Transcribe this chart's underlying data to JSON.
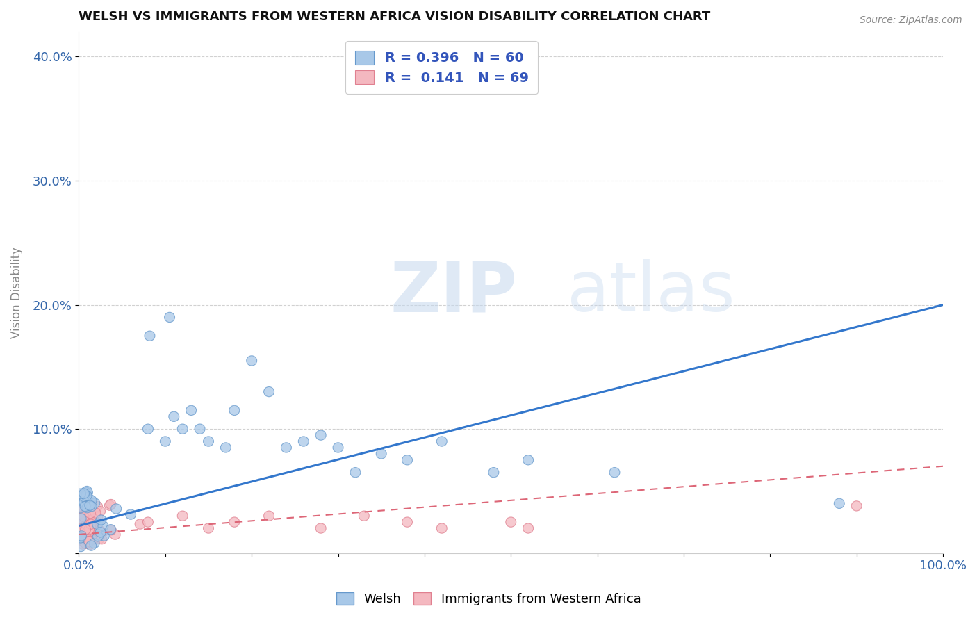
{
  "title": "WELSH VS IMMIGRANTS FROM WESTERN AFRICA VISION DISABILITY CORRELATION CHART",
  "source": "Source: ZipAtlas.com",
  "ylabel": "Vision Disability",
  "xlim": [
    0.0,
    1.0
  ],
  "ylim": [
    0.0,
    0.42
  ],
  "xtick_pos": [
    0.0,
    0.1,
    0.2,
    0.3,
    0.4,
    0.5,
    0.6,
    0.7,
    0.8,
    0.9,
    1.0
  ],
  "xtick_labels": [
    "0.0%",
    "",
    "",
    "",
    "",
    "",
    "",
    "",
    "",
    "",
    "100.0%"
  ],
  "ytick_pos": [
    0.0,
    0.1,
    0.2,
    0.3,
    0.4
  ],
  "ytick_labels": [
    "",
    "10.0%",
    "20.0%",
    "30.0%",
    "40.0%"
  ],
  "welsh_color": "#a8c8e8",
  "welsh_edge_color": "#6699cc",
  "immigrant_color": "#f4b8c0",
  "immigrant_edge_color": "#e08090",
  "welsh_R": 0.396,
  "welsh_N": 60,
  "immigrant_R": 0.141,
  "immigrant_N": 69,
  "welsh_line_color": "#3377cc",
  "immigrant_line_color": "#dd6677",
  "watermark_zip": "ZIP",
  "watermark_atlas": "atlas",
  "legend_label_welsh": "Welsh",
  "legend_label_immigrant": "Immigrants from Western Africa",
  "welsh_line_intercept": 0.022,
  "welsh_line_slope": 0.178,
  "immigrant_line_intercept": 0.015,
  "immigrant_line_slope": 0.055
}
